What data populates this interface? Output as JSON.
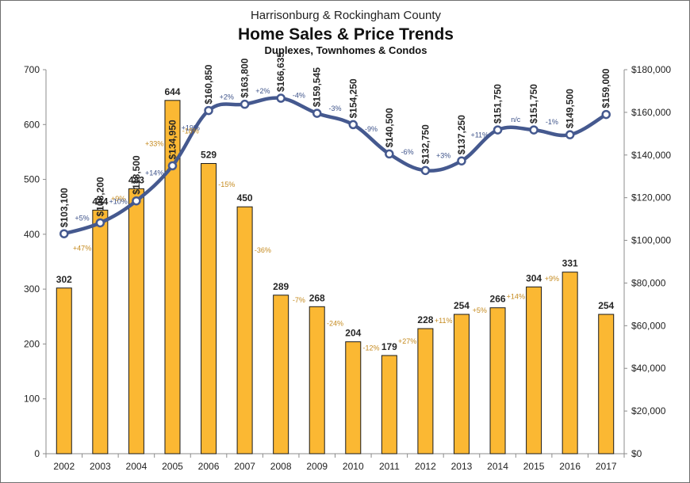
{
  "title": {
    "line1": "Harrisonburg & Rockingham County",
    "line2": "Home Sales & Price Trends",
    "line3": "Duplexes, Townhomes & Condos"
  },
  "colors": {
    "bar_fill": "#fbb833",
    "bar_stroke": "#1a1a1a",
    "line": "#45598f",
    "marker_fill": "#ffffff",
    "bar_change_text": "#c58a1e",
    "price_change_text": "#3d5289"
  },
  "chart_data": {
    "type": "bar",
    "categories": [
      "2002",
      "2003",
      "2004",
      "2005",
      "2006",
      "2007",
      "2008",
      "2009",
      "2010",
      "2011",
      "2012",
      "2013",
      "2014",
      "2015",
      "2016",
      "2017"
    ],
    "series": [
      {
        "chart_type": "bar",
        "axis": "left",
        "values": [
          302,
          444,
          483,
          644,
          529,
          450,
          289,
          268,
          204,
          179,
          228,
          254,
          266,
          304,
          331,
          254
        ],
        "value_labels": [
          "302",
          "444",
          "483",
          "644",
          "529",
          "450",
          "289",
          "268",
          "204",
          "179",
          "228",
          "254",
          "266",
          "304",
          "331",
          "254"
        ],
        "change_labels": [
          "",
          "+47%",
          "+9%",
          "+33%",
          "-18%",
          "-15%",
          "-36%",
          "-7%",
          "-24%",
          "-12%",
          "+27%",
          "+11%",
          "+5%",
          "+14%",
          "+9%",
          ""
        ]
      },
      {
        "chart_type": "line",
        "axis": "right",
        "values": [
          103100,
          108200,
          118500,
          134950,
          160850,
          163800,
          166635,
          159545,
          154250,
          140500,
          132750,
          137250,
          151750,
          151750,
          149500,
          159000
        ],
        "value_labels": [
          "$103,100",
          "$108,200",
          "$118,500",
          "$134,950",
          "$160,850",
          "$163,800",
          "$166,635",
          "$159,545",
          "$154,250",
          "$140,500",
          "$132,750",
          "$137,250",
          "$151,750",
          "$151,750",
          "$149,500",
          "$159,000"
        ],
        "change_labels": [
          "",
          "+5%",
          "+10%",
          "+14%",
          "+19%",
          "+2%",
          "+2%",
          "-4%",
          "-3%",
          "-9%",
          "-6%",
          "+3%",
          "+11%",
          "n/c",
          "-1%",
          ""
        ]
      }
    ],
    "y_left": {
      "min": 0,
      "max": 700,
      "ticks": [
        "0",
        "100",
        "200",
        "300",
        "400",
        "500",
        "600",
        "700"
      ]
    },
    "y_right": {
      "min": 0,
      "max": 180000,
      "ticks": [
        "$0",
        "$20,000",
        "$40,000",
        "$60,000",
        "$80,000",
        "$100,000",
        "$120,000",
        "$140,000",
        "$160,000",
        "$180,000"
      ]
    },
    "grid": false,
    "legend": "none"
  }
}
